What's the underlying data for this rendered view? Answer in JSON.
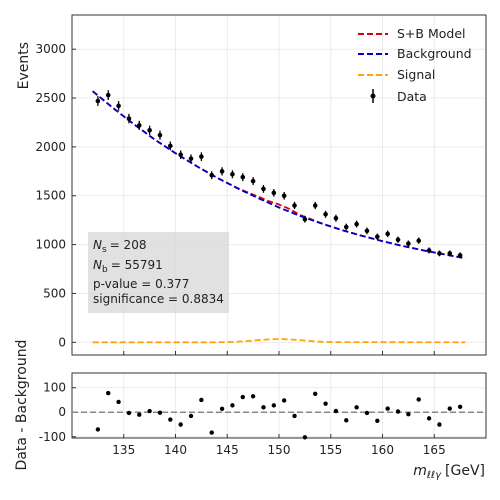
{
  "chart_data": [
    {
      "panel": "main",
      "type": "scatter",
      "ylabel": "Events",
      "xlim": [
        130,
        170
      ],
      "ylim": [
        -130,
        3350
      ],
      "yticks": [
        0,
        500,
        1000,
        1500,
        2000,
        2500,
        3000
      ],
      "grid": true,
      "legend": {
        "placement": "top-right",
        "entries": [
          {
            "label": "S+B Model",
            "color": "#dd0000",
            "style": "dashed"
          },
          {
            "label": "Background",
            "color": "#0000cc",
            "style": "dashed"
          },
          {
            "label": "Signal",
            "color": "#ffa500",
            "style": "dashed"
          },
          {
            "label": "Data",
            "color": "#000000",
            "style": "errorbar"
          }
        ]
      },
      "stats_box": {
        "ns_label": "= 208",
        "nb_label": "= 55791",
        "pvalue_label": "p-value = 0.377",
        "significance_label": "significance = 0.8834"
      },
      "data_points": {
        "x": [
          132.5,
          133.5,
          134.5,
          135.5,
          136.5,
          137.5,
          138.5,
          139.5,
          140.5,
          141.5,
          142.5,
          143.5,
          144.5,
          145.5,
          146.5,
          147.5,
          148.5,
          149.5,
          150.5,
          151.5,
          152.5,
          153.5,
          154.5,
          155.5,
          156.5,
          157.5,
          158.5,
          159.5,
          160.5,
          161.5,
          162.5,
          163.5,
          164.5,
          165.5,
          166.5,
          167.5
        ],
        "y": [
          2470,
          2530,
          2420,
          2290,
          2220,
          2170,
          2120,
          2010,
          1920,
          1880,
          1900,
          1710,
          1750,
          1720,
          1690,
          1650,
          1570,
          1530,
          1500,
          1400,
          1260,
          1400,
          1310,
          1270,
          1180,
          1210,
          1140,
          1080,
          1110,
          1050,
          1010,
          1040,
          940,
          910,
          910,
          890
        ],
        "yerr": [
          50,
          50,
          49,
          48,
          47,
          47,
          46,
          45,
          44,
          43,
          44,
          41,
          42,
          41,
          41,
          41,
          40,
          39,
          39,
          37,
          35,
          37,
          36,
          36,
          34,
          35,
          34,
          33,
          33,
          32,
          32,
          32,
          31,
          30,
          30,
          30
        ]
      },
      "background_curve": {
        "x": [
          132,
          134,
          136,
          138,
          140,
          142,
          144,
          146,
          148,
          150,
          152,
          154,
          156,
          158,
          160,
          162,
          164,
          166,
          168
        ],
        "y": [
          2570,
          2395,
          2230,
          2075,
          1935,
          1805,
          1685,
          1575,
          1475,
          1380,
          1295,
          1220,
          1150,
          1090,
          1035,
          985,
          940,
          900,
          860
        ]
      },
      "sb_curve": {
        "x": [
          132,
          134,
          136,
          138,
          140,
          142,
          144,
          146,
          148,
          149,
          150,
          151,
          152,
          154,
          156,
          158,
          160,
          162,
          164,
          166,
          168
        ],
        "y": [
          2570,
          2395,
          2230,
          2075,
          1935,
          1805,
          1685,
          1578,
          1490,
          1445,
          1410,
          1365,
          1305,
          1222,
          1151,
          1090,
          1035,
          985,
          940,
          900,
          860
        ]
      },
      "signal_curve": {
        "x": [
          132,
          144,
          145,
          146,
          147,
          148,
          149,
          150,
          151,
          152,
          153,
          154,
          155,
          168
        ],
        "y": [
          0,
          0,
          2,
          6,
          13,
          22,
          30,
          34,
          30,
          22,
          13,
          6,
          2,
          0
        ]
      }
    },
    {
      "panel": "residual",
      "type": "scatter",
      "xlabel_base": "m",
      "xlabel_sub": "ℓℓγ",
      "xlabel_unit": "[GeV]",
      "ylabel": "Data - Background",
      "xlim": [
        130,
        170
      ],
      "ylim": [
        -105,
        160
      ],
      "xticks": [
        135,
        140,
        145,
        150,
        155,
        160,
        165
      ],
      "yticks": [
        -100,
        0,
        100
      ],
      "reference_line": 0,
      "grid": true,
      "residuals": {
        "x": [
          132.5,
          133.5,
          134.5,
          135.5,
          136.5,
          137.5,
          138.5,
          139.5,
          140.5,
          141.5,
          142.5,
          143.5,
          144.5,
          145.5,
          146.5,
          147.5,
          148.5,
          149.5,
          150.5,
          151.5,
          152.5,
          153.5,
          154.5,
          155.5,
          156.5,
          157.5,
          158.5,
          159.5,
          160.5,
          161.5,
          162.5,
          163.5,
          164.5,
          165.5,
          166.5,
          167.5
        ],
        "y": [
          -70,
          78,
          42,
          -3,
          -10,
          5,
          -2,
          -30,
          -50,
          -15,
          50,
          -83,
          14,
          28,
          62,
          65,
          20,
          28,
          48,
          -15,
          -102,
          75,
          35,
          5,
          -33,
          20,
          -3,
          -35,
          15,
          3,
          -8,
          52,
          -25,
          -50,
          15,
          22
        ]
      }
    }
  ]
}
